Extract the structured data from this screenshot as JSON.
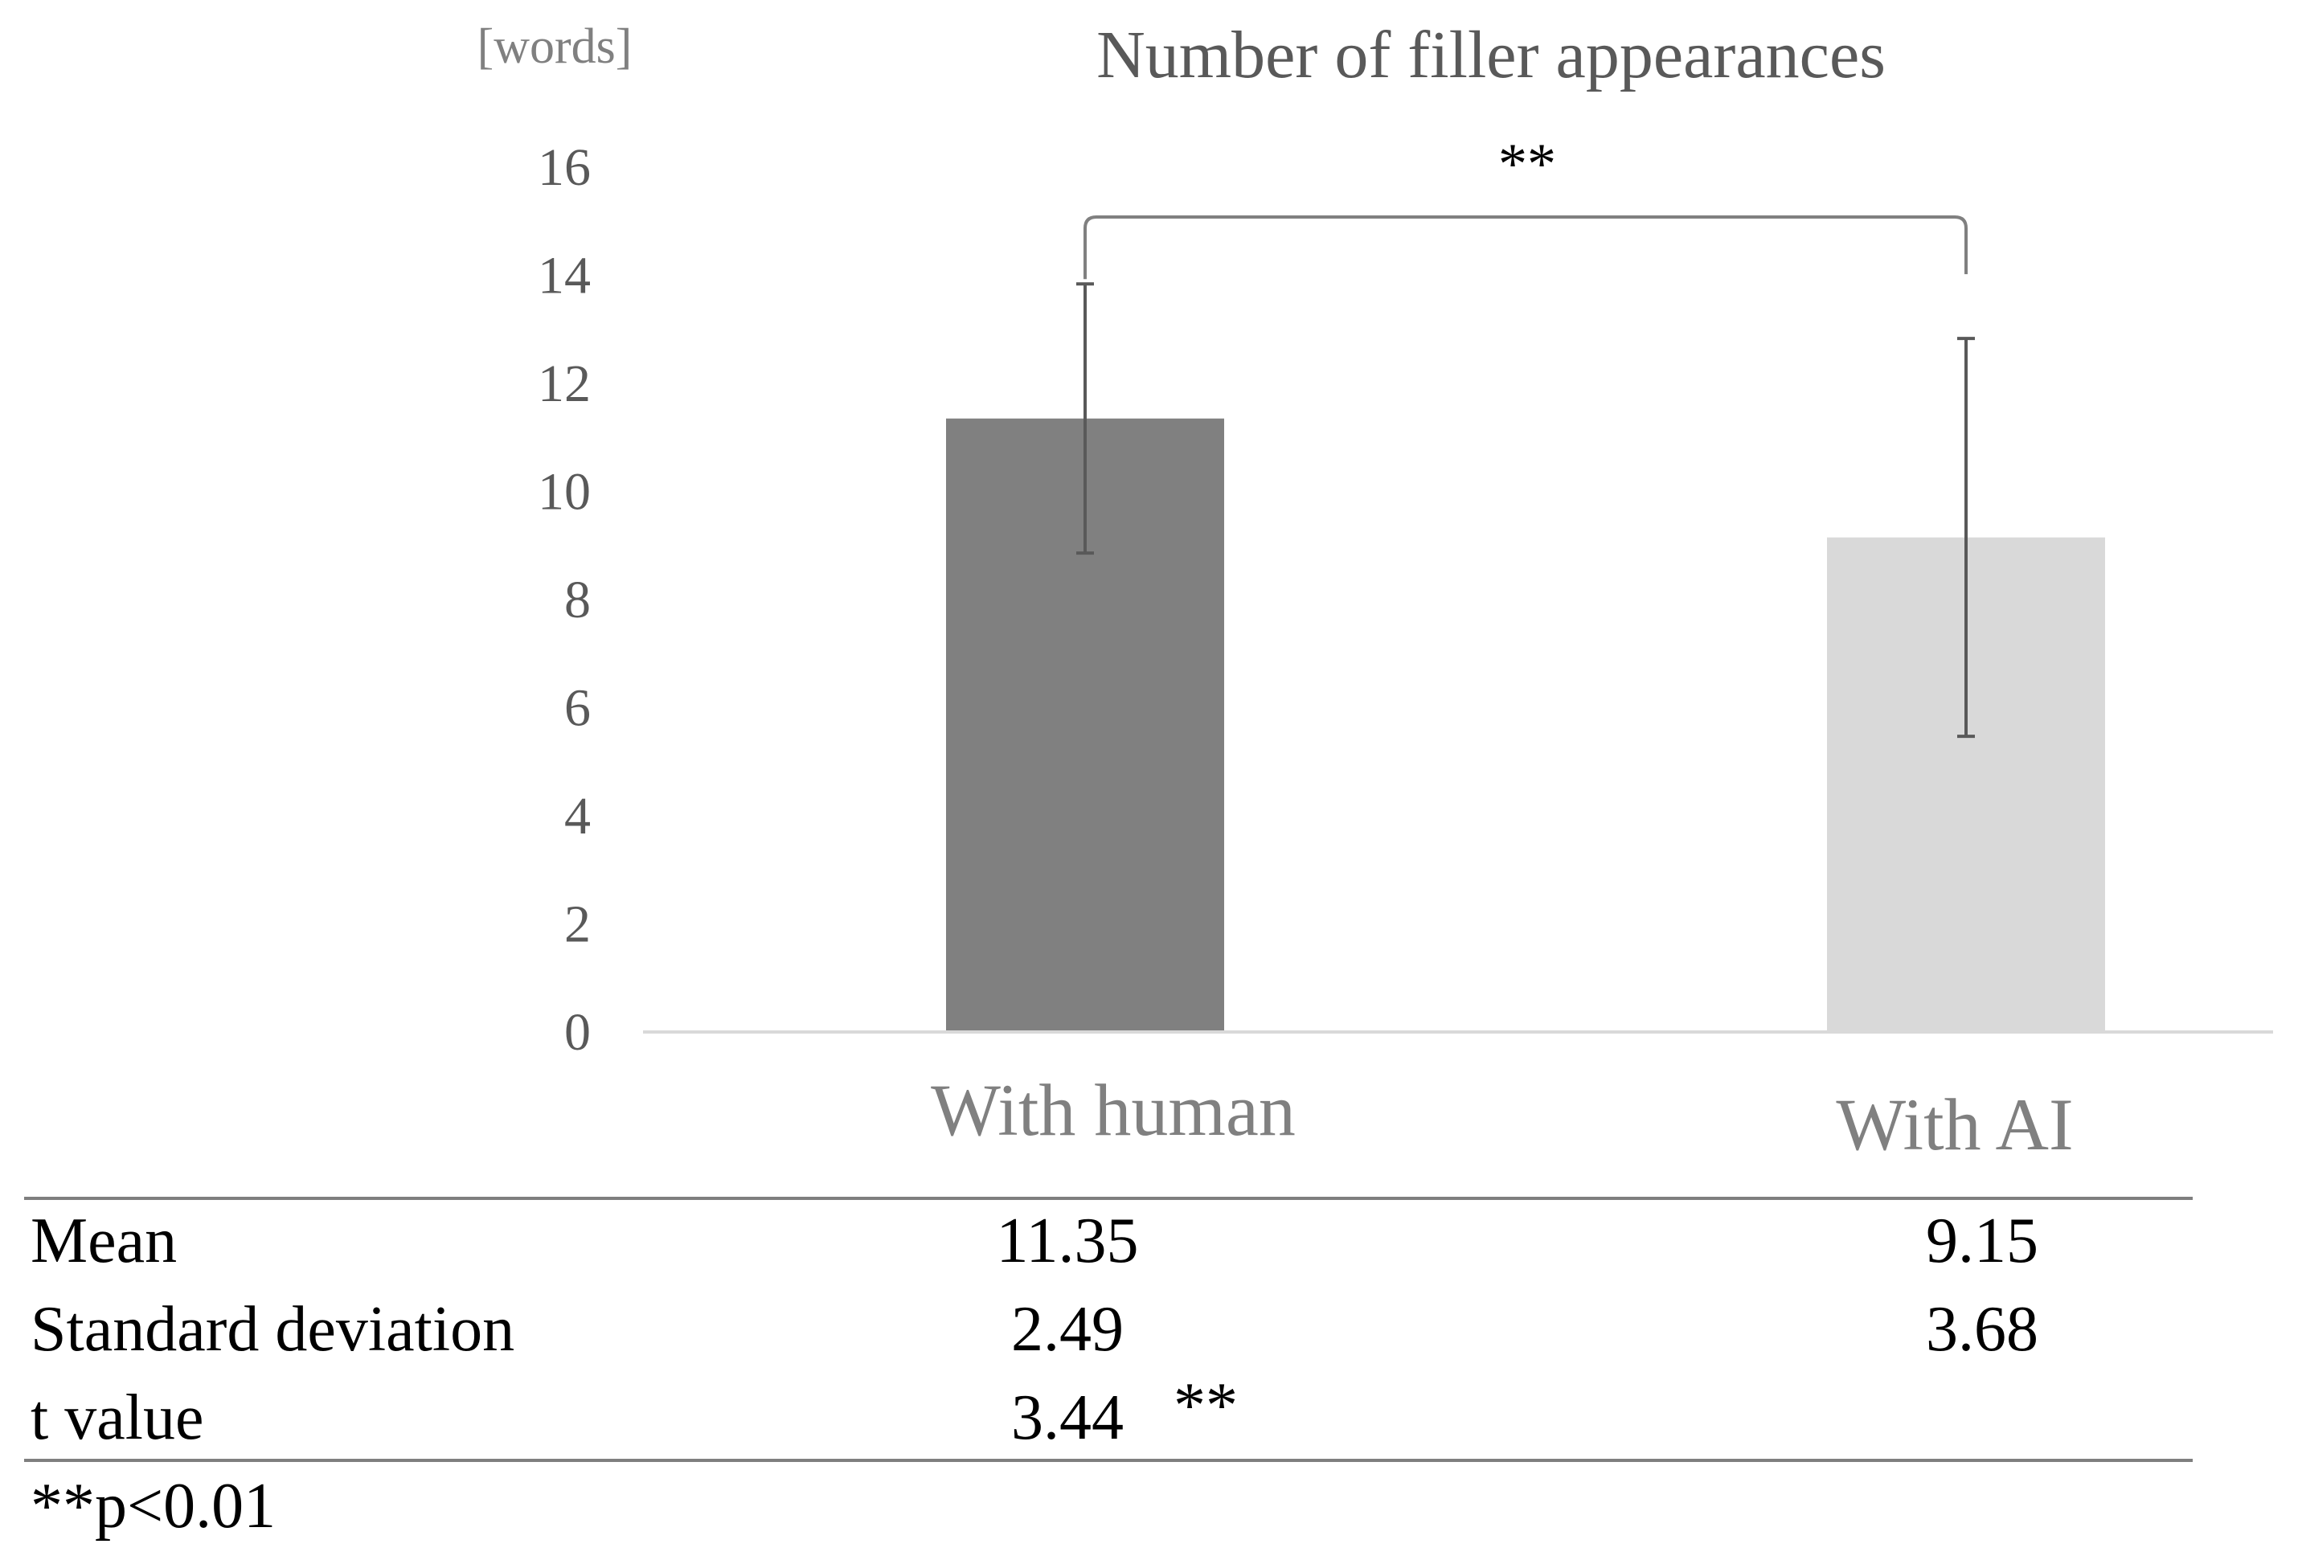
{
  "chart_data": {
    "type": "bar",
    "title": "Number of filler appearances",
    "unit_label": "[words]",
    "categories": [
      "With human",
      "With AI"
    ],
    "values": [
      11.35,
      9.15
    ],
    "error": [
      2.49,
      3.68
    ],
    "ylim": [
      0,
      16
    ],
    "yticks": [
      "0",
      "2",
      "4",
      "6",
      "8",
      "10",
      "12",
      "14",
      "16"
    ],
    "bar_colors": [
      "#808080",
      "#d9d9d9"
    ],
    "significance": "**",
    "grid": false,
    "legend": "none"
  },
  "table": {
    "rows": [
      {
        "label": "Mean",
        "values": [
          "11.35",
          "9.15"
        ]
      },
      {
        "label": "Standard deviation",
        "values": [
          "2.49",
          "3.68"
        ]
      },
      {
        "label": "t value",
        "values": [
          "3.44",
          ""
        ],
        "mark": "**"
      }
    ],
    "footnote": "**p<0.01"
  }
}
